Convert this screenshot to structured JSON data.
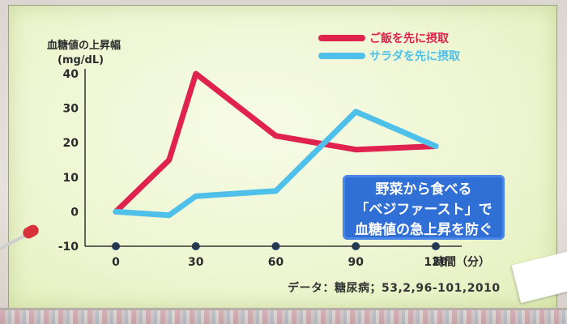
{
  "chart_data": {
    "type": "line",
    "ylabel_line1": "血糖値の上昇幅",
    "ylabel_line2": "(mg/dL)",
    "xlabel": "時間（分）",
    "x_ticks": [
      "0",
      "30",
      "60",
      "90",
      "120"
    ],
    "y_ticks": [
      "40",
      "30",
      "20",
      "10",
      "0",
      "-10"
    ],
    "xlim": [
      0,
      120
    ],
    "ylim": [
      -10,
      40
    ],
    "x": [
      0,
      20,
      30,
      60,
      90,
      120
    ],
    "series": [
      {
        "name": "ご飯を先に摂取",
        "color": "#e0234e",
        "values": [
          0,
          15,
          40,
          22,
          18,
          19
        ]
      },
      {
        "name": "サラダを先に摂取",
        "color": "#4fc0ea",
        "values": [
          0,
          -1,
          4.5,
          6,
          29,
          19
        ]
      }
    ],
    "grid": false,
    "legend_position": "top-right"
  },
  "note": {
    "line1": "野菜から食べる",
    "line2": "「ベジファースト」で",
    "line3": "血糖値の急上昇を防ぐ",
    "bg_color": "#2f6fd6"
  },
  "source": "データ：糖尿病；53,2,96-101,2010"
}
